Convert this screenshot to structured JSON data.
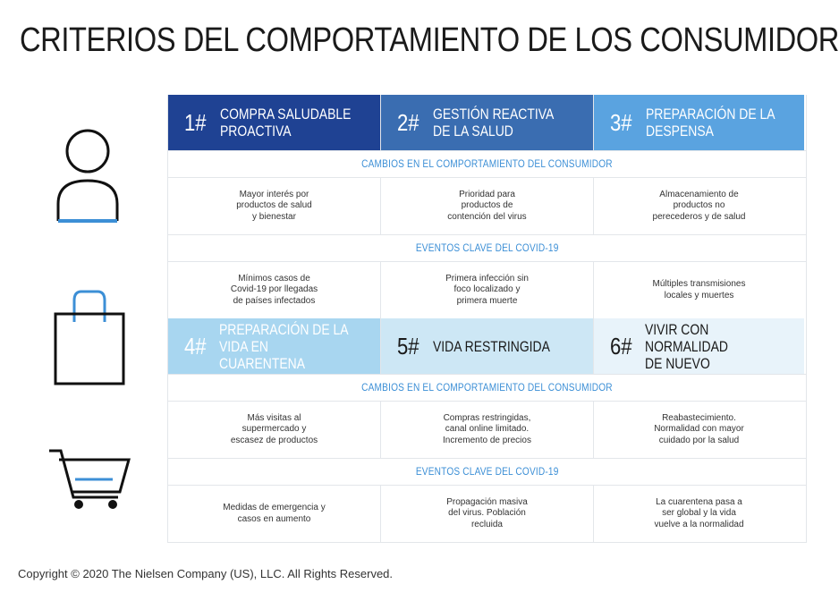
{
  "title": "CRITERIOS DEL COMPORTAMIENTO DE LOS CONSUMIDORES",
  "colors": {
    "dark_blue": "#1f4293",
    "mid_blue": "#3a6db1",
    "light_blue": "#5aa3e0",
    "pale_blue": "#a8d6f0",
    "paler_blue": "#cde7f5",
    "palest_blue": "#e8f3fa",
    "section_text": "#3c8fd6"
  },
  "icons": [
    "person-icon",
    "shopping-bag-icon",
    "shopping-cart-icon"
  ],
  "sections": {
    "behavior": "CAMBIOS EN EL COMPORTAMIENTO DEL CONSUMIDOR",
    "events": "EVENTOS CLAVE DEL COVID-19"
  },
  "stages": [
    {
      "num": "1#",
      "label": "COMPRA SALUDABLE\nPROACTIVA",
      "behavior": "Mayor interés por\nproductos de salud\ny bienestar",
      "events": "Mínimos casos de\nCovid-19 por llegadas\nde países infectados"
    },
    {
      "num": "2#",
      "label": "GESTIÓN REACTIVA\nDE LA SALUD",
      "behavior": "Prioridad para\nproductos de\ncontención del virus",
      "events": "Primera infección sin\nfoco localizado y\nprimera muerte"
    },
    {
      "num": "3#",
      "label": "PREPARACIÓN DE LA\nDESPENSA",
      "behavior": "Almacenamiento de\nproductos no\nperecederos y de salud",
      "events": "Múltiples transmisiones\nlocales y muertes"
    },
    {
      "num": "4#",
      "label": "PREPARACIÓN DE LA\nVIDA EN CUARENTENA",
      "behavior": "Más visitas al\nsupermercado y\nescasez de productos",
      "events": "Medidas de emergencia y\ncasos en aumento"
    },
    {
      "num": "5#",
      "label": "VIDA RESTRINGIDA",
      "behavior": "Compras restringidas,\ncanal online limitado.\nIncremento de precios",
      "events": "Propagación masiva\ndel virus. Población\nrecluida"
    },
    {
      "num": "6#",
      "label": "VIVIR CON NORMALIDAD\nDE NUEVO",
      "behavior": "Reabastecimiento.\nNormalidad con mayor\ncuidado por la salud",
      "events": "La cuarentena pasa a\nser global y la vida\nvuelve a la normalidad"
    }
  ],
  "copyright": "Copyright © 2020 The Nielsen Company (US), LLC. All Rights Reserved."
}
